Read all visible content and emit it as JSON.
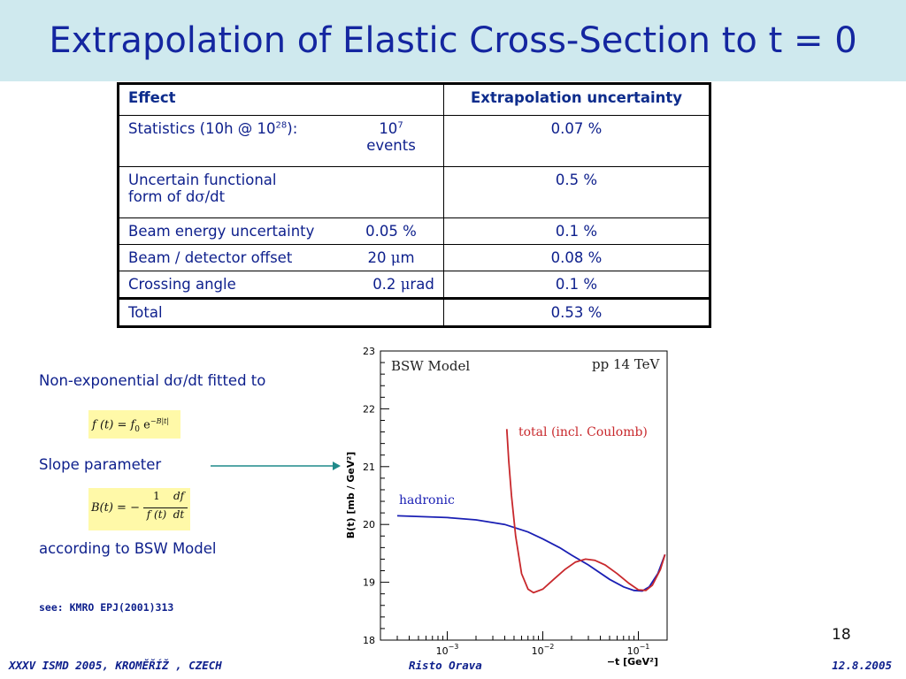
{
  "title": "Extrapolation of Elastic Cross-Section to t = 0",
  "table": {
    "header": {
      "effect": "Effect",
      "uncertainty": "Extrapolation uncertainty"
    },
    "rows": [
      {
        "effect_pre": "Statistics (10h @ 10",
        "effect_sup": "28",
        "effect_post": "):",
        "value_pre": "10",
        "value_sup": "7",
        "value_post": "events",
        "uncertainty": "0.07 %"
      },
      {
        "effect_line1": "Uncertain functional",
        "effect_line2_pre": "form of d",
        "effect_line2_sym": "σ",
        "effect_line2_post": "/dt",
        "value": "",
        "uncertainty": "0.5 %"
      },
      {
        "effect": "Beam energy uncertainty",
        "value": "0.05 %",
        "uncertainty": "0.1 %"
      },
      {
        "effect": "Beam / detector offset",
        "value_pre": "20 ",
        "value_sym": "μ",
        "value_post": "m",
        "uncertainty": "0.08 %"
      },
      {
        "effect": "Crossing angle",
        "value_pre": "0.2 ",
        "value_sym": "μ",
        "value_post": "rad",
        "uncertainty": "0.1 %"
      },
      {
        "effect": "Total",
        "uncertainty": "0.53 %"
      }
    ]
  },
  "left_panel": {
    "fit_text_pre": "Non-exponential d",
    "fit_text_sym": "σ",
    "fit_text_post": "/dt fitted to",
    "formula1": {
      "lhs": "f (t) = f",
      "sub": "0",
      "e": "e",
      "exp": "−B|t|"
    },
    "slope_text": "Slope parameter",
    "formula2": {
      "lhs": "B(t) = −",
      "num1": "1",
      "den1": "f (t)",
      "num2": "df",
      "den2": "dt"
    },
    "model_text": "according to BSW Model",
    "reference": "see: KMRO EPJ(2001)313"
  },
  "chart_data": {
    "type": "line",
    "model_label": "BSW Model",
    "energy_label": "pp 14 TeV",
    "ylabel": "B(t) [mb / GeV²]",
    "xlabel": "−t [GeV²]",
    "x_scale": "log",
    "xlim": [
      0.0002,
      0.2
    ],
    "ylim": [
      18,
      23
    ],
    "y_ticks": [
      "18",
      "19",
      "20",
      "21",
      "22",
      "23"
    ],
    "x_ticks": [
      {
        "base": "10",
        "exp": "−3",
        "value": 0.001
      },
      {
        "base": "10",
        "exp": "−2",
        "value": 0.01
      },
      {
        "base": "10",
        "exp": "−1",
        "value": 0.1
      }
    ],
    "colors": {
      "hadronic": "#1a1fb4",
      "total": "#c8282c"
    },
    "series": [
      {
        "name": "hadronic",
        "x": [
          0.0003,
          0.001,
          0.002,
          0.004,
          0.007,
          0.01,
          0.015,
          0.02,
          0.03,
          0.05,
          0.07,
          0.09,
          0.11,
          0.13,
          0.16,
          0.19
        ],
        "y": [
          20.15,
          20.12,
          20.08,
          20.0,
          19.87,
          19.75,
          19.6,
          19.47,
          19.3,
          19.05,
          18.92,
          18.86,
          18.85,
          18.92,
          19.15,
          19.48
        ]
      },
      {
        "name": "total (incl. Coulomb)",
        "x": [
          0.0042,
          0.0044,
          0.0047,
          0.0052,
          0.006,
          0.007,
          0.008,
          0.01,
          0.013,
          0.017,
          0.022,
          0.028,
          0.035,
          0.045,
          0.06,
          0.08,
          0.1,
          0.12,
          0.14,
          0.17,
          0.19
        ],
        "y": [
          21.65,
          21.1,
          20.5,
          19.8,
          19.15,
          18.88,
          18.82,
          18.88,
          19.05,
          19.22,
          19.35,
          19.4,
          19.38,
          19.3,
          19.15,
          18.98,
          18.87,
          18.86,
          18.95,
          19.22,
          19.48
        ]
      }
    ]
  },
  "footer": {
    "left": "XXXV ISMD 2005, KROMĚŘÍŽ , CZECH",
    "center": "Risto Orava",
    "right": "12.8.2005"
  },
  "page_number": "18"
}
